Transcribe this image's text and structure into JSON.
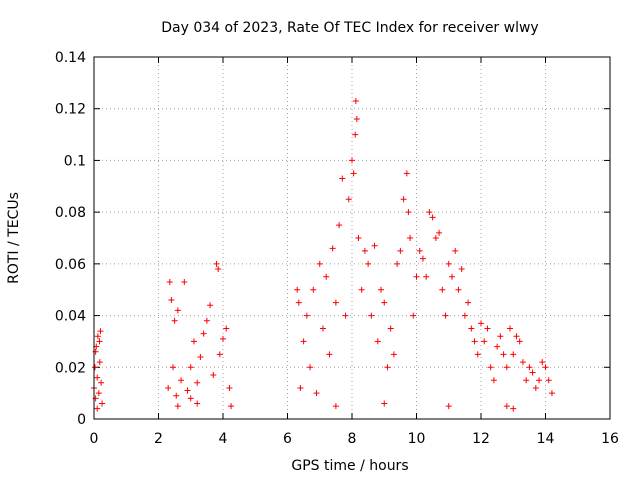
{
  "chart_data": {
    "type": "scatter",
    "title": "Day 034 of 2023, Rate Of TEC Index for receiver wlwy",
    "xlabel": "GPS time / hours",
    "ylabel": "ROTI / TECUs",
    "xlim": [
      0,
      16
    ],
    "ylim": [
      0,
      0.14
    ],
    "x_ticks": [
      0,
      2,
      4,
      6,
      8,
      10,
      12,
      14,
      16
    ],
    "x_tick_labels": [
      "0",
      "2",
      "4",
      "6",
      "8",
      "10",
      "12",
      "14",
      "16"
    ],
    "y_ticks": [
      0,
      0.02,
      0.04,
      0.06,
      0.08,
      0.1,
      0.12,
      0.14
    ],
    "y_tick_labels": [
      "0",
      "0.02",
      "0.04",
      "0.06",
      "0.08",
      "0.1",
      "0.12",
      "0.14"
    ],
    "grid": true,
    "marker": "+",
    "color": "#ff0000",
    "series": [
      {
        "name": "ROTI",
        "points": [
          [
            0.0,
            0.012
          ],
          [
            0.03,
            0.02
          ],
          [
            0.05,
            0.008
          ],
          [
            0.07,
            0.028
          ],
          [
            0.1,
            0.016
          ],
          [
            0.12,
            0.032
          ],
          [
            0.15,
            0.01
          ],
          [
            0.18,
            0.022
          ],
          [
            0.2,
            0.034
          ],
          [
            0.22,
            0.014
          ],
          [
            0.25,
            0.006
          ],
          [
            0.1,
            0.004
          ],
          [
            0.05,
            0.026
          ],
          [
            0.17,
            0.03
          ],
          [
            2.3,
            0.012
          ],
          [
            2.35,
            0.053
          ],
          [
            2.4,
            0.046
          ],
          [
            2.45,
            0.02
          ],
          [
            2.5,
            0.038
          ],
          [
            2.55,
            0.009
          ],
          [
            2.6,
            0.042
          ],
          [
            2.7,
            0.015
          ],
          [
            2.8,
            0.053
          ],
          [
            2.9,
            0.011
          ],
          [
            3.0,
            0.02
          ],
          [
            3.1,
            0.03
          ],
          [
            3.2,
            0.014
          ],
          [
            3.3,
            0.024
          ],
          [
            3.4,
            0.033
          ],
          [
            3.5,
            0.038
          ],
          [
            3.6,
            0.044
          ],
          [
            3.7,
            0.017
          ],
          [
            3.8,
            0.06
          ],
          [
            3.85,
            0.058
          ],
          [
            3.9,
            0.025
          ],
          [
            4.0,
            0.031
          ],
          [
            4.1,
            0.035
          ],
          [
            4.2,
            0.012
          ],
          [
            4.25,
            0.005
          ],
          [
            3.2,
            0.006
          ],
          [
            2.6,
            0.005
          ],
          [
            3.0,
            0.008
          ],
          [
            6.3,
            0.05
          ],
          [
            6.35,
            0.045
          ],
          [
            6.4,
            0.012
          ],
          [
            6.5,
            0.03
          ],
          [
            6.6,
            0.04
          ],
          [
            6.7,
            0.02
          ],
          [
            6.8,
            0.05
          ],
          [
            6.9,
            0.01
          ],
          [
            7.0,
            0.06
          ],
          [
            7.1,
            0.035
          ],
          [
            7.2,
            0.055
          ],
          [
            7.3,
            0.025
          ],
          [
            7.4,
            0.066
          ],
          [
            7.5,
            0.045
          ],
          [
            7.6,
            0.075
          ],
          [
            7.7,
            0.093
          ],
          [
            7.8,
            0.04
          ],
          [
            7.9,
            0.085
          ],
          [
            8.0,
            0.1
          ],
          [
            8.05,
            0.095
          ],
          [
            8.1,
            0.11
          ],
          [
            8.12,
            0.123
          ],
          [
            8.15,
            0.116
          ],
          [
            8.2,
            0.07
          ],
          [
            8.3,
            0.05
          ],
          [
            8.4,
            0.065
          ],
          [
            8.5,
            0.06
          ],
          [
            8.6,
            0.04
          ],
          [
            8.7,
            0.067
          ],
          [
            8.8,
            0.03
          ],
          [
            8.9,
            0.05
          ],
          [
            9.0,
            0.045
          ],
          [
            9.1,
            0.02
          ],
          [
            9.2,
            0.035
          ],
          [
            9.3,
            0.025
          ],
          [
            9.4,
            0.06
          ],
          [
            9.5,
            0.065
          ],
          [
            9.6,
            0.085
          ],
          [
            9.7,
            0.095
          ],
          [
            9.75,
            0.08
          ],
          [
            9.8,
            0.07
          ],
          [
            9.9,
            0.04
          ],
          [
            10.0,
            0.055
          ],
          [
            10.1,
            0.065
          ],
          [
            10.2,
            0.062
          ],
          [
            10.3,
            0.055
          ],
          [
            10.4,
            0.08
          ],
          [
            10.5,
            0.078
          ],
          [
            10.6,
            0.07
          ],
          [
            10.7,
            0.072
          ],
          [
            10.8,
            0.05
          ],
          [
            10.9,
            0.04
          ],
          [
            11.0,
            0.06
          ],
          [
            11.1,
            0.055
          ],
          [
            11.2,
            0.065
          ],
          [
            11.3,
            0.05
          ],
          [
            11.4,
            0.058
          ],
          [
            11.5,
            0.04
          ],
          [
            11.6,
            0.045
          ],
          [
            11.7,
            0.035
          ],
          [
            11.8,
            0.03
          ],
          [
            11.9,
            0.025
          ],
          [
            12.0,
            0.037
          ],
          [
            12.1,
            0.03
          ],
          [
            12.2,
            0.035
          ],
          [
            12.3,
            0.02
          ],
          [
            12.4,
            0.015
          ],
          [
            12.5,
            0.028
          ],
          [
            12.6,
            0.032
          ],
          [
            12.7,
            0.025
          ],
          [
            12.8,
            0.02
          ],
          [
            12.9,
            0.035
          ],
          [
            13.0,
            0.025
          ],
          [
            13.1,
            0.032
          ],
          [
            13.2,
            0.03
          ],
          [
            13.3,
            0.022
          ],
          [
            13.4,
            0.015
          ],
          [
            13.5,
            0.02
          ],
          [
            13.6,
            0.018
          ],
          [
            13.7,
            0.012
          ],
          [
            13.8,
            0.015
          ],
          [
            13.9,
            0.022
          ],
          [
            14.0,
            0.02
          ],
          [
            14.1,
            0.015
          ],
          [
            14.2,
            0.01
          ],
          [
            7.5,
            0.005
          ],
          [
            9.0,
            0.006
          ],
          [
            11.0,
            0.005
          ],
          [
            13.0,
            0.004
          ],
          [
            12.8,
            0.005
          ]
        ]
      }
    ]
  }
}
